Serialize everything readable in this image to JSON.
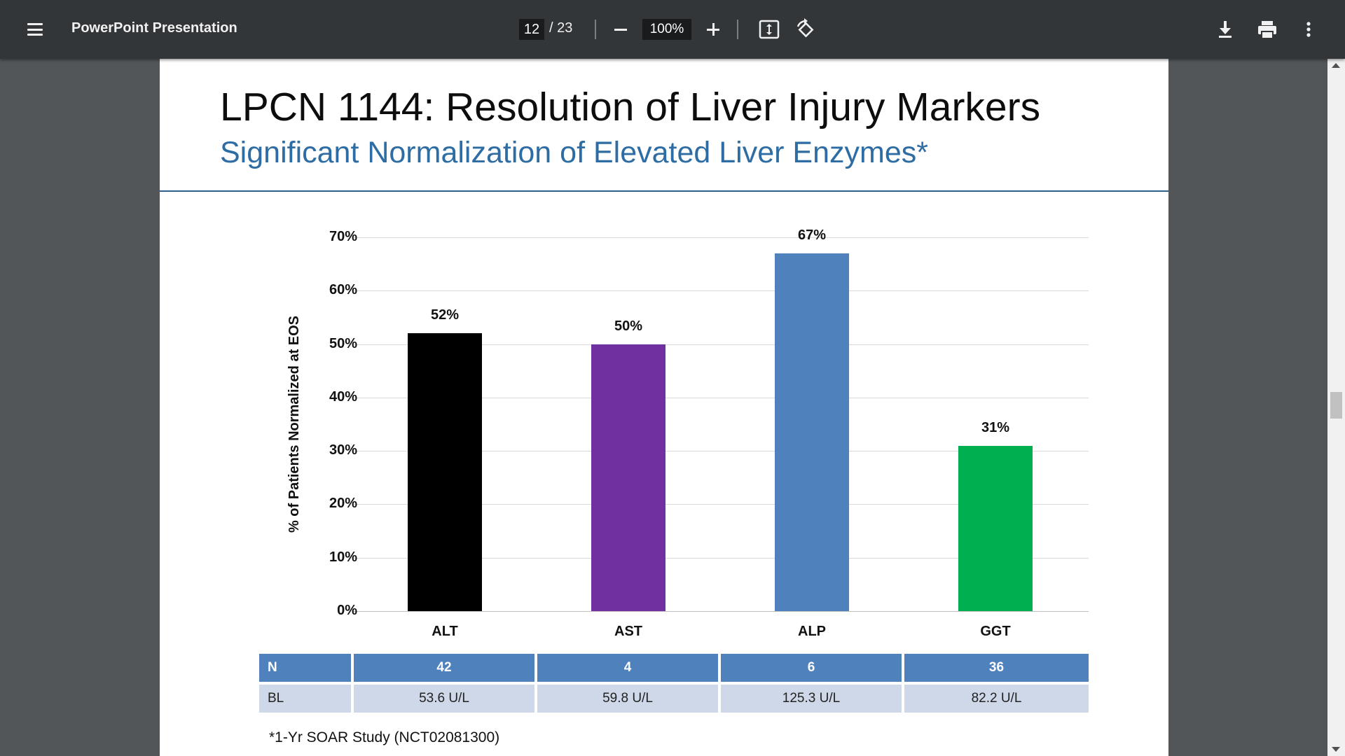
{
  "toolbar": {
    "title": "PowerPoint Presentation",
    "current_page": "12",
    "page_total": "/ 23",
    "zoom": "100%",
    "icons": {
      "menu": "menu-icon",
      "zoom_out": "minus-icon",
      "zoom_in": "plus-icon",
      "fit": "fit-page-icon",
      "rotate": "rotate-icon",
      "download": "download-icon",
      "print": "print-icon",
      "more": "more-vert-icon"
    }
  },
  "slide": {
    "title": "LPCN 1144: Resolution of Liver Injury Markers",
    "subtitle": "Significant Normalization of Elevated Liver Enzymes*",
    "footnote": "*1-Yr SOAR Study (NCT02081300)"
  },
  "chart_data": {
    "type": "bar",
    "title": "",
    "xlabel": "",
    "ylabel": "% of Patients Normalized at EOS",
    "ylim": [
      0,
      70
    ],
    "yticks": [
      "0%",
      "10%",
      "20%",
      "30%",
      "40%",
      "50%",
      "60%",
      "70%"
    ],
    "ytick_values": [
      0,
      10,
      20,
      30,
      40,
      50,
      60,
      70
    ],
    "categories": [
      "ALT",
      "AST",
      "ALP",
      "GGT"
    ],
    "values": [
      52,
      50,
      67,
      31
    ],
    "value_labels": [
      "52%",
      "50%",
      "67%",
      "31%"
    ],
    "colors": [
      "#000000",
      "#7030a0",
      "#4f81bd",
      "#00b050"
    ],
    "grid": true
  },
  "table": {
    "rows": [
      {
        "label": "N",
        "cells": [
          "42",
          "4",
          "6",
          "36"
        ]
      },
      {
        "label": "BL",
        "cells": [
          "53.6 U/L",
          "59.8 U/L",
          "125.3 U/L",
          "82.2 U/L"
        ]
      }
    ]
  },
  "colors": {
    "toolbar_bg": "#323639",
    "viewer_bg": "#525659",
    "subtitle": "#2e6da4",
    "table_header": "#4f81bd",
    "table_row": "#cfd8e8"
  }
}
